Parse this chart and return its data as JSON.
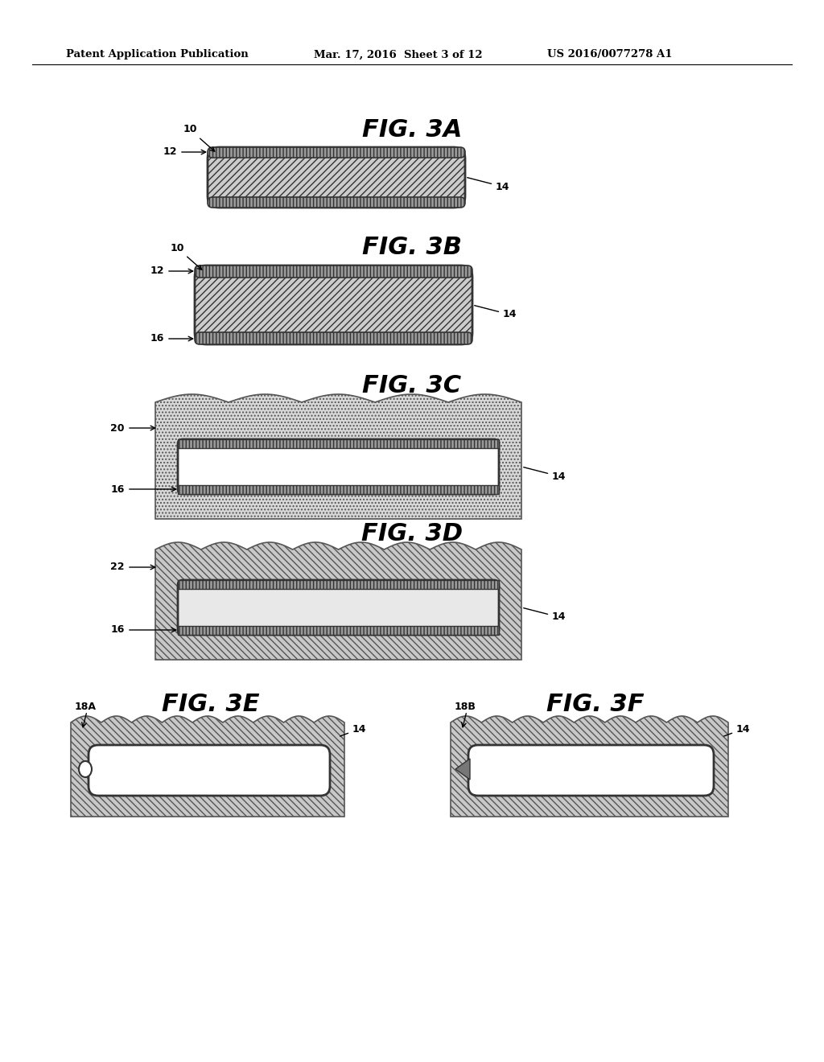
{
  "bg_color": "#ffffff",
  "header_left": "Patent Application Publication",
  "header_mid": "Mar. 17, 2016  Sheet 3 of 12",
  "header_right": "US 2016/0077278 A1",
  "fig_3a": "FIG. 3A",
  "fig_3b": "FIG. 3B",
  "fig_3c": "FIG. 3C",
  "fig_3d": "FIG. 3D",
  "fig_3e": "FIG. 3E",
  "fig_3f": "FIG. 3F",
  "gray_diag_fill": "#cccccc",
  "gray_substrate": "#c8c8c8",
  "gray_substrate_d": "#b8b8b8",
  "gray_stripe": "#999999",
  "gray_inner": "#d8d8d8",
  "white": "#ffffff",
  "dark": "#333333",
  "mid": "#666666"
}
